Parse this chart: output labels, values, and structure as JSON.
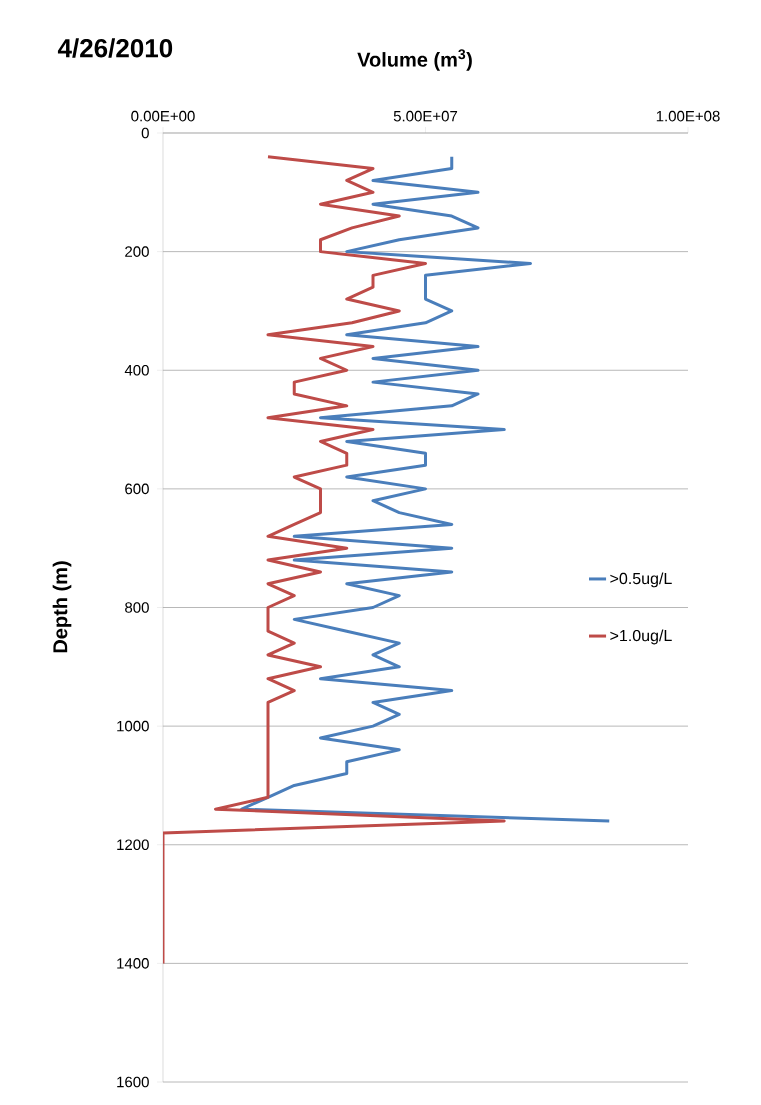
{
  "chart_data": {
    "type": "line",
    "title": "4/26/2010",
    "xlabel": "Volume (m$^{3}$)",
    "ylabel": "Depth (m)",
    "xlim": [
      0,
      100000000
    ],
    "xticks": [
      {
        "value": 0,
        "label": "0.00E+00"
      },
      {
        "value": 50000000,
        "label": "5.00E+07"
      },
      {
        "value": 100000000,
        "label": "1.00E+08"
      }
    ],
    "ylim": [
      1600,
      0
    ],
    "yticks": [
      0,
      200,
      400,
      600,
      800,
      1000,
      1200,
      1400,
      1600
    ],
    "grid": "y",
    "legend": "right",
    "marker": "none",
    "line_style": "solid",
    "series": [
      {
        "name": ">0.5ug/L",
        "color": "#4a7ebb",
        "x": [
          55000000,
          55000000,
          40000000,
          60000000,
          40000000,
          55000000,
          60000000,
          45000000,
          35000000,
          70000000,
          50000000,
          50000000,
          55000000,
          50000000,
          35000000,
          60000000,
          40000000,
          60000000,
          40000000,
          60000000,
          55000000,
          30000000,
          65000000,
          35000000,
          50000000,
          50000000,
          35000000,
          50000000,
          40000000,
          45000000,
          55000000,
          25000000,
          55000000,
          25000000,
          55000000,
          35000000,
          45000000,
          40000000,
          25000000,
          35000000,
          45000000,
          40000000,
          45000000,
          30000000,
          55000000,
          40000000,
          45000000,
          40000000,
          30000000,
          45000000,
          35000000,
          35000000,
          25000000,
          20000000,
          15000000,
          85000000,
          null
        ],
        "values": [
          40,
          60,
          80,
          100,
          120,
          140,
          160,
          180,
          200,
          220,
          240,
          280,
          300,
          320,
          340,
          360,
          380,
          400,
          420,
          440,
          460,
          480,
          500,
          520,
          540,
          560,
          580,
          600,
          620,
          640,
          660,
          680,
          700,
          720,
          740,
          760,
          780,
          800,
          820,
          840,
          860,
          880,
          900,
          920,
          940,
          960,
          980,
          1000,
          1020,
          1040,
          1060,
          1080,
          1100,
          1120,
          1140,
          1160,
          null
        ]
      },
      {
        "name": ">1.0ug/L",
        "color": "#be4b48",
        "x": [
          20000000,
          40000000,
          35000000,
          40000000,
          30000000,
          45000000,
          36000000,
          30000000,
          30000000,
          50000000,
          40000000,
          40000000,
          35000000,
          45000000,
          36000000,
          20000000,
          40000000,
          30000000,
          35000000,
          25000000,
          25000000,
          35000000,
          20000000,
          40000000,
          30000000,
          35000000,
          35000000,
          25000000,
          30000000,
          30000000,
          25000000,
          20000000,
          35000000,
          20000000,
          30000000,
          20000000,
          25000000,
          20000000,
          20000000,
          25000000,
          20000000,
          30000000,
          20000000,
          25000000,
          20000000,
          20000000,
          10000000,
          65000000,
          0,
          0
        ],
        "values": [
          40,
          60,
          80,
          100,
          120,
          140,
          160,
          180,
          200,
          220,
          240,
          260,
          280,
          300,
          320,
          340,
          360,
          380,
          400,
          420,
          440,
          460,
          480,
          500,
          520,
          540,
          560,
          580,
          600,
          640,
          660,
          680,
          700,
          720,
          740,
          760,
          780,
          800,
          840,
          860,
          880,
          900,
          920,
          940,
          960,
          1120,
          1140,
          1160,
          1180,
          1400
        ]
      }
    ]
  }
}
